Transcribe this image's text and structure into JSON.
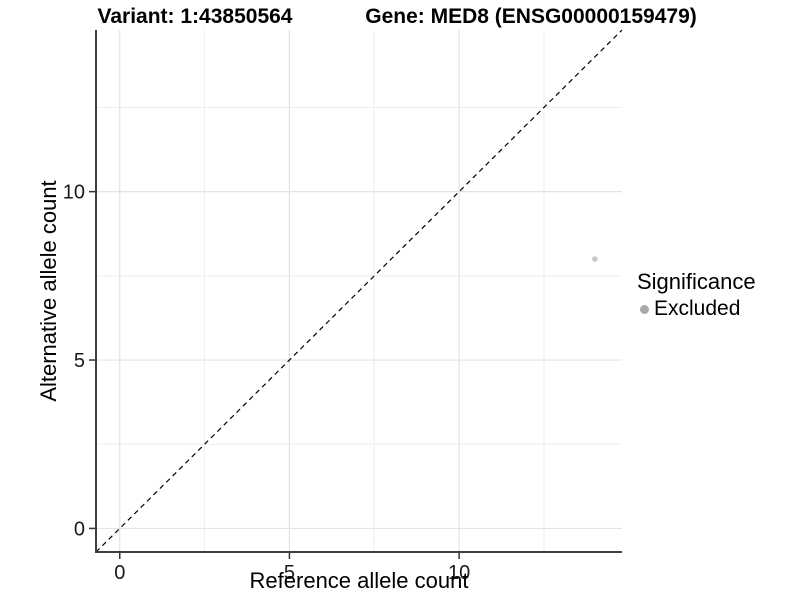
{
  "chart_data": {
    "type": "scatter",
    "title_left": "Variant: 1:43850564",
    "title_right": "Gene: MED8 (ENSG00000159479)",
    "xlabel": "Reference allele count",
    "ylabel": "Alternative allele count",
    "xlim": [
      -0.7,
      14.8
    ],
    "ylim": [
      -0.7,
      14.8
    ],
    "x_ticks": [
      0,
      5,
      10
    ],
    "y_ticks": [
      0,
      5,
      10
    ],
    "x_minor_gridlines": [
      2.5,
      7.5,
      12.5
    ],
    "y_minor_gridlines": [
      2.5,
      7.5,
      12.5
    ],
    "grid": "major and minor, light gray, white panel background",
    "axes_style": "left and bottom axis lines only, dark gray, outward ticks",
    "reference_line": {
      "equation": "y = x",
      "style": "dashed",
      "color": "#000000"
    },
    "series": [
      {
        "name": "Excluded",
        "marker": "circle",
        "color": "#c9c9c9",
        "points": [
          {
            "x": 14,
            "y": 8
          }
        ]
      }
    ],
    "legend": {
      "title": "Significance",
      "position": "right",
      "entries": [
        {
          "label": "Excluded",
          "marker": "circle",
          "color": "#a8a8a8"
        }
      ]
    },
    "colors": {
      "axis_line": "#3f3f3f",
      "tick_mark": "#333333",
      "tick_label": "#1a1a1a",
      "major_grid": "#e3e3e3",
      "minor_grid": "#eeeeee",
      "text": "#000000",
      "background": "#ffffff"
    }
  }
}
